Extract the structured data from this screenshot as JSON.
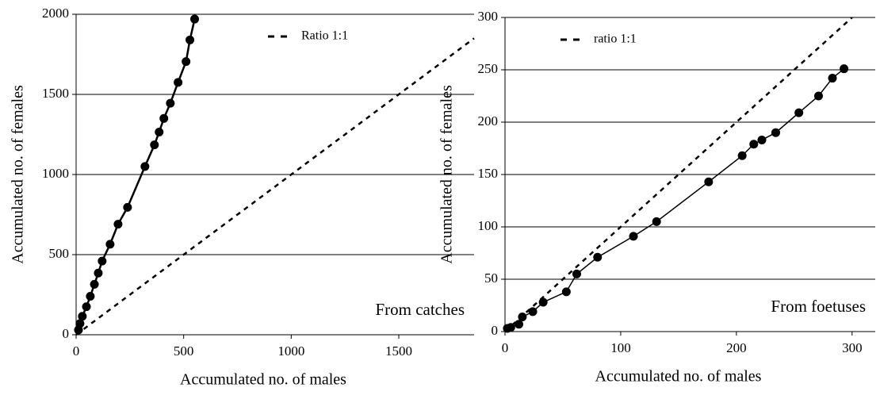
{
  "chart_data": [
    {
      "type": "line",
      "xlabel": "Accumulated no. of males",
      "ylabel": "Accumulated no. of females",
      "annotation": "From catches",
      "xlim": [
        0,
        1850
      ],
      "xticks": [
        0,
        500,
        1000,
        1500
      ],
      "ylim": [
        0,
        2000
      ],
      "yticks": [
        0,
        500,
        1000,
        1500,
        2000
      ],
      "grid": true,
      "legend": "upper right",
      "series": [
        {
          "color": "#000000",
          "style": "solid",
          "markers": true,
          "x": [
            11,
            18,
            29,
            48,
            66,
            85,
            103,
            121,
            158,
            195,
            239,
            320,
            364,
            386,
            408,
            438,
            474,
            511,
            529,
            551
          ],
          "values": [
            30,
            70,
            115,
            175,
            240,
            315,
            385,
            460,
            565,
            690,
            795,
            1050,
            1185,
            1265,
            1350,
            1445,
            1575,
            1705,
            1840,
            1970
          ]
        },
        {
          "name": "Ratio 1:1",
          "color": "#000000",
          "style": "dashed",
          "markers": false,
          "x": [
            0,
            1850
          ],
          "values": [
            0,
            1850
          ]
        }
      ]
    },
    {
      "type": "line",
      "xlabel": "Accumulated no. of males",
      "ylabel": "Accumulated no. of females",
      "annotation": "From foetuses",
      "xlim": [
        0,
        320
      ],
      "xticks": [
        0,
        100,
        200,
        300
      ],
      "ylim": [
        0,
        300
      ],
      "yticks": [
        0,
        50,
        100,
        150,
        200,
        250,
        300
      ],
      "grid": true,
      "legend": "upper left",
      "series": [
        {
          "color": "#000000",
          "style": "solid",
          "markers": true,
          "x": [
            2,
            5,
            12,
            15,
            24,
            33,
            53,
            62,
            80,
            111,
            131,
            176,
            205,
            215,
            222,
            234,
            254,
            271,
            283,
            293
          ],
          "values": [
            3,
            4,
            7,
            14,
            19,
            28,
            38,
            55,
            71,
            91,
            105,
            143,
            168,
            179,
            183,
            190,
            209,
            225,
            242,
            251
          ]
        },
        {
          "name": "ratio 1:1",
          "color": "#000000",
          "style": "dashed",
          "markers": false,
          "x": [
            0,
            300
          ],
          "values": [
            0,
            300
          ]
        }
      ]
    }
  ]
}
